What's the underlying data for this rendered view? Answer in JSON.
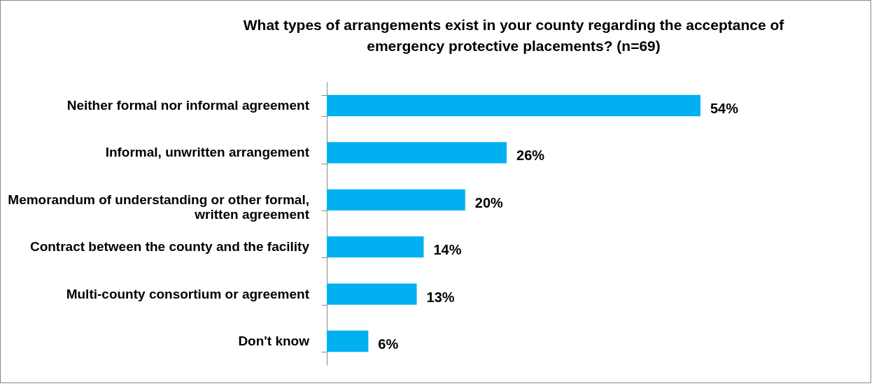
{
  "chart_data": {
    "type": "bar",
    "orientation": "horizontal",
    "title": "What types of arrangements exist in your county regarding the acceptance of emergency protective placements? (n=69)",
    "categories": [
      "Neither formal nor informal agreement",
      "Informal, unwritten arrangement",
      "Memorandum of understanding or other formal, written agreement",
      "Contract between the county and the facility",
      "Multi-county consortium or agreement",
      "Don't know"
    ],
    "values": [
      54,
      26,
      20,
      14,
      13,
      6
    ],
    "value_labels": [
      "54%",
      "26%",
      "20%",
      "14%",
      "13%",
      "6%"
    ],
    "color": "#00b0f0"
  }
}
